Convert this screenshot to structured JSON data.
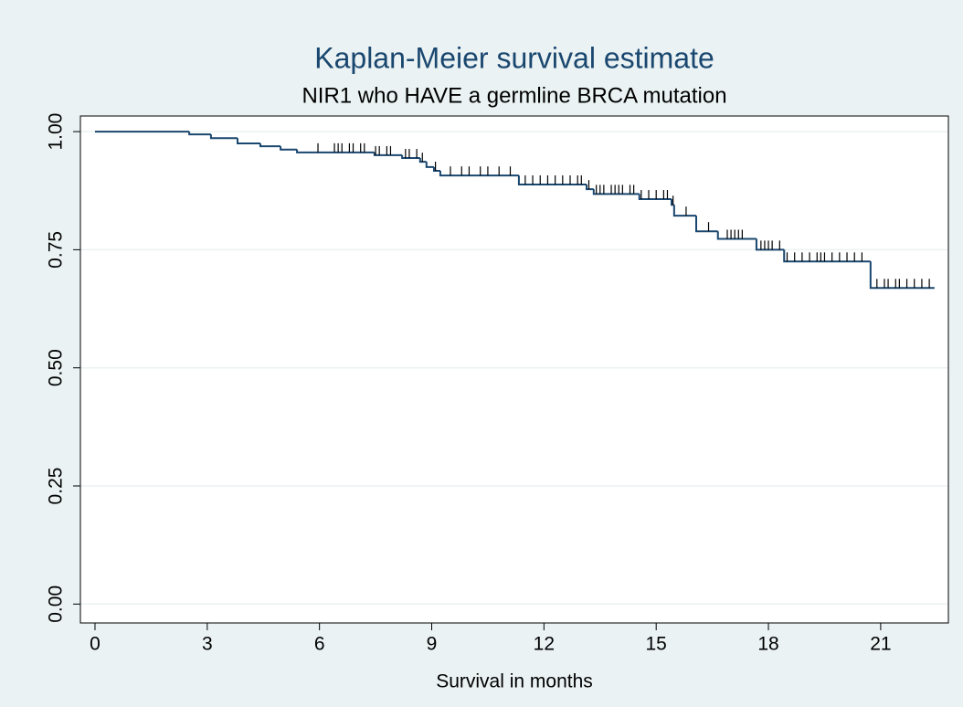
{
  "chart_data": {
    "type": "line",
    "step": "post",
    "title": "Kaplan-Meier survival estimate",
    "subtitle": "NIR1 who HAVE a germline BRCA mutation",
    "x_label": "Survival in months",
    "xlim": [
      -0.39,
      22.81
    ],
    "ylim": [
      -0.04,
      1.033
    ],
    "xticks": [
      0,
      3,
      6,
      9,
      12,
      15,
      18,
      21
    ],
    "yticks": [
      {
        "value": 0,
        "label": "0.00"
      },
      {
        "value": 0.25,
        "label": "0.25"
      },
      {
        "value": 0.5,
        "label": "0.50"
      },
      {
        "value": 0.75,
        "label": "0.75"
      },
      {
        "value": 1,
        "label": "1.00"
      }
    ],
    "grid": true,
    "color": "#1a476f",
    "x": [
      0,
      2.52,
      3.1,
      3.81,
      4.42,
      4.96,
      5.4,
      7.47,
      8.21,
      8.69,
      8.86,
      9.06,
      9.23,
      11.33,
      13.14,
      13.33,
      14.55,
      15.41,
      15.48,
      16.07,
      16.65,
      17.68,
      18.42,
      20.73,
      22.44
    ],
    "values": [
      1.0,
      0.994,
      0.986,
      0.975,
      0.969,
      0.962,
      0.956,
      0.95,
      0.944,
      0.936,
      0.925,
      0.917,
      0.907,
      0.888,
      0.878,
      0.868,
      0.857,
      0.845,
      0.822,
      0.789,
      0.773,
      0.75,
      0.725,
      0.669,
      0.669
    ],
    "censored": {
      "color": "#000000",
      "x": [
        5.96,
        6.4,
        6.5,
        6.6,
        6.8,
        6.9,
        7.1,
        7.2,
        7.5,
        7.6,
        7.8,
        7.9,
        8.3,
        8.4,
        8.6,
        8.75,
        9.1,
        9.5,
        9.8,
        10.0,
        10.3,
        10.5,
        10.8,
        11.1,
        11.5,
        11.7,
        11.9,
        12.1,
        12.3,
        12.5,
        12.7,
        12.9,
        13.0,
        13.2,
        13.4,
        13.5,
        13.6,
        13.8,
        13.9,
        14.0,
        14.1,
        14.3,
        14.4,
        14.6,
        14.8,
        15.0,
        15.2,
        15.3,
        15.45,
        15.8,
        16.4,
        16.9,
        17.0,
        17.1,
        17.2,
        17.3,
        17.8,
        17.9,
        18.0,
        18.1,
        18.3,
        18.5,
        18.7,
        18.9,
        19.1,
        19.3,
        19.4,
        19.5,
        19.7,
        19.9,
        20.1,
        20.3,
        20.5,
        20.9,
        21.1,
        21.2,
        21.4,
        21.5,
        21.7,
        21.9,
        22.1,
        22.3
      ],
      "values": [
        0.956,
        0.956,
        0.956,
        0.956,
        0.956,
        0.956,
        0.956,
        0.956,
        0.95,
        0.95,
        0.95,
        0.95,
        0.944,
        0.944,
        0.944,
        0.936,
        0.917,
        0.907,
        0.907,
        0.907,
        0.907,
        0.907,
        0.907,
        0.907,
        0.888,
        0.888,
        0.888,
        0.888,
        0.888,
        0.888,
        0.888,
        0.888,
        0.888,
        0.878,
        0.868,
        0.868,
        0.868,
        0.868,
        0.868,
        0.868,
        0.868,
        0.868,
        0.868,
        0.857,
        0.857,
        0.857,
        0.857,
        0.857,
        0.845,
        0.822,
        0.789,
        0.773,
        0.773,
        0.773,
        0.773,
        0.773,
        0.75,
        0.75,
        0.75,
        0.75,
        0.75,
        0.725,
        0.725,
        0.725,
        0.725,
        0.725,
        0.725,
        0.725,
        0.725,
        0.725,
        0.725,
        0.725,
        0.725,
        0.669,
        0.669,
        0.669,
        0.669,
        0.669,
        0.669,
        0.669,
        0.669,
        0.669
      ]
    }
  }
}
